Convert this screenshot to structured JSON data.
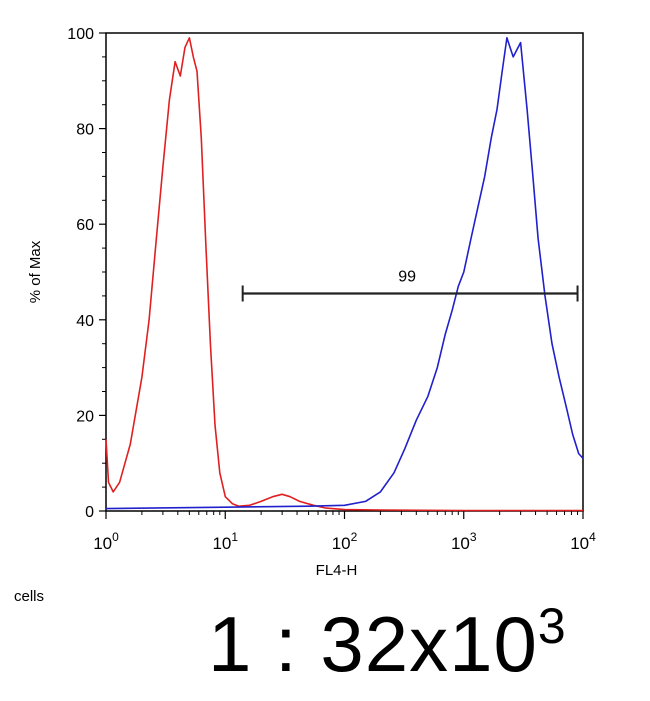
{
  "chart_data": {
    "type": "line",
    "xlabel": "FL4-H",
    "ylabel": "% of Max",
    "xscale": "log",
    "xlim": [
      1,
      10000
    ],
    "ylim": [
      0,
      100
    ],
    "x_ticks": [
      {
        "value": 1,
        "base": "10",
        "exp": "0"
      },
      {
        "value": 10,
        "base": "10",
        "exp": "1"
      },
      {
        "value": 100,
        "base": "10",
        "exp": "2"
      },
      {
        "value": 1000,
        "base": "10",
        "exp": "3"
      },
      {
        "value": 10000,
        "base": "10",
        "exp": "4"
      }
    ],
    "y_ticks": [
      "0",
      "20",
      "40",
      "60",
      "80",
      "100"
    ],
    "grid": false,
    "series": [
      {
        "color": "#e02020",
        "x": [
          1.0,
          1.05,
          1.15,
          1.3,
          1.6,
          2.0,
          2.3,
          2.6,
          3.0,
          3.4,
          3.8,
          4.2,
          4.6,
          5.0,
          5.4,
          5.8,
          6.3,
          6.9,
          7.5,
          8.2,
          9.0,
          10.0,
          11.5,
          13.0,
          16.0,
          20.0,
          25.0,
          30.0,
          35.0,
          42.0,
          55.0,
          70.0,
          100.0,
          200.0,
          1000.0,
          10000.0
        ],
        "y": [
          15,
          6,
          4,
          6,
          14,
          28,
          40,
          55,
          72,
          86,
          94,
          91,
          97,
          99,
          95,
          92,
          78,
          55,
          35,
          18,
          8,
          3,
          1.5,
          1,
          1.2,
          2,
          3,
          3.5,
          3,
          2,
          1.2,
          0.6,
          0.3,
          0.2,
          0.1,
          0.1
        ]
      },
      {
        "color": "#2020cc",
        "x": [
          1.0,
          10.0,
          50.0,
          100.0,
          150.0,
          200.0,
          260.0,
          320.0,
          400.0,
          500.0,
          600.0,
          700.0,
          800.0,
          900.0,
          1000.0,
          1150.0,
          1300.0,
          1500.0,
          1700.0,
          1900.0,
          2100.0,
          2300.0,
          2600.0,
          3000.0,
          3400.0,
          3800.0,
          4200.0,
          4800.0,
          5500.0,
          6300.0,
          7200.0,
          8200.0,
          9200.0,
          10000.0
        ],
        "y": [
          0.5,
          0.8,
          1,
          1.2,
          2,
          4,
          8,
          13,
          19,
          24,
          30,
          37,
          42,
          47,
          50,
          57,
          63,
          70,
          78,
          84,
          92,
          99,
          95,
          98,
          84,
          70,
          57,
          45,
          35,
          28,
          22,
          16,
          12,
          11
        ]
      }
    ],
    "annotations": [
      {
        "label": "99",
        "x_start": 14,
        "x_end": 9000,
        "y": 45.5
      }
    ]
  },
  "footer": {
    "cells_label": "cells",
    "ratio_text": "1 : 32x10",
    "ratio_exp": "3"
  }
}
